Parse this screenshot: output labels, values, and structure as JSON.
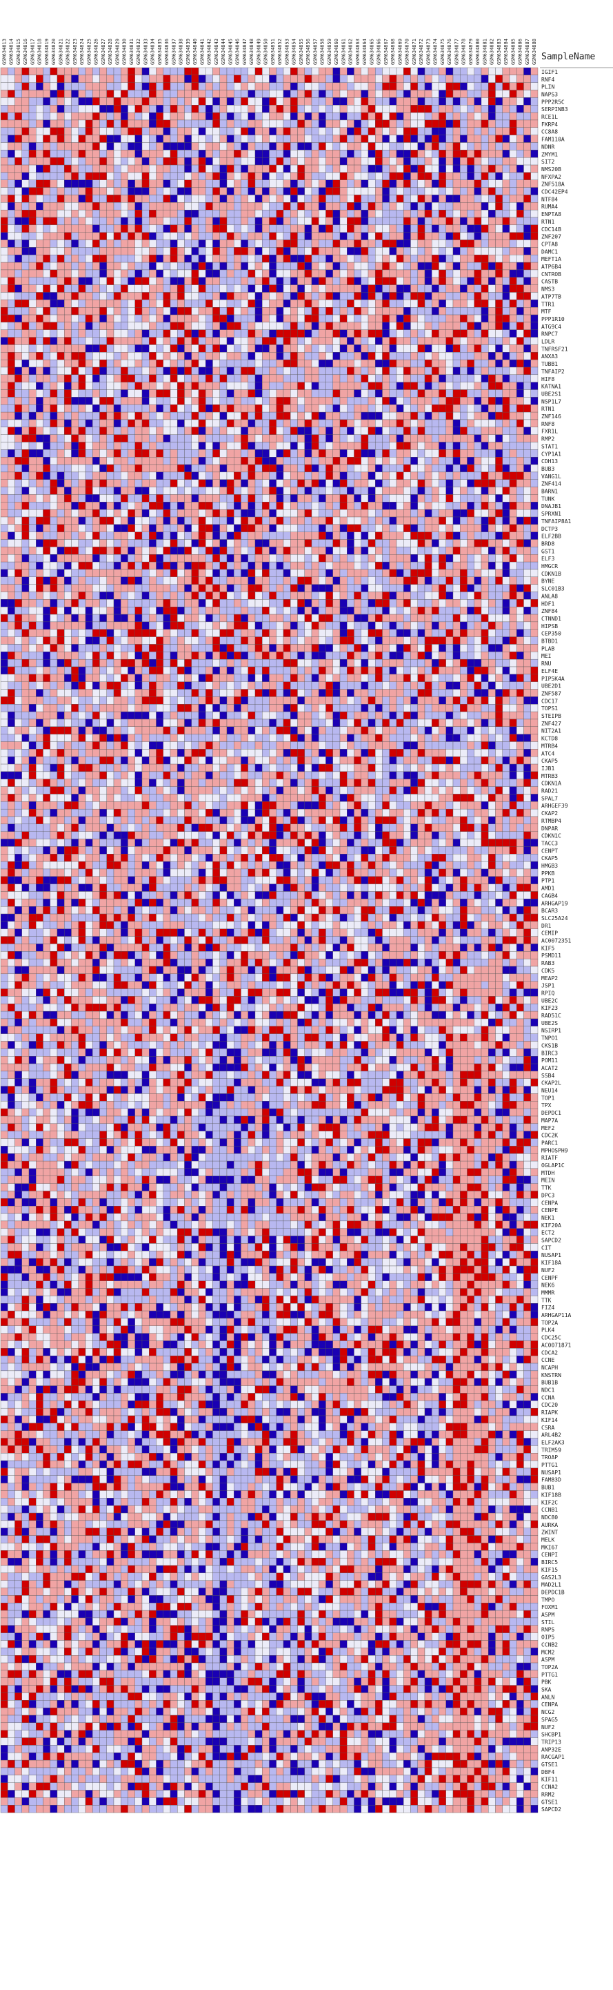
{
  "chart_data": {
    "type": "heatmap",
    "header_label": "SampleName",
    "sample_names": [
      "GSM634813",
      "GSM634814",
      "GSM634815",
      "GSM634816",
      "GSM634817",
      "GSM634818",
      "GSM634819",
      "GSM634820",
      "GSM634821",
      "GSM634822",
      "GSM634823",
      "GSM634824",
      "GSM634825",
      "GSM634826",
      "GSM634827",
      "GSM634828",
      "GSM634829",
      "GSM634830",
      "GSM634831",
      "GSM634832",
      "GSM634833",
      "GSM634834",
      "GSM634835",
      "GSM634836",
      "GSM634837",
      "GSM634838",
      "GSM634839",
      "GSM634840",
      "GSM634841",
      "GSM634842",
      "GSM634843",
      "GSM634844",
      "GSM634845",
      "GSM634846",
      "GSM634847",
      "GSM634848",
      "GSM634849",
      "GSM634850",
      "GSM634851",
      "GSM634852",
      "GSM634853",
      "GSM634854",
      "GSM634855",
      "GSM634856",
      "GSM634857",
      "GSM634858",
      "GSM634859",
      "GSM634860",
      "GSM634861",
      "GSM634862",
      "GSM634863",
      "GSM634864",
      "GSM634865",
      "GSM634866",
      "GSM634867",
      "GSM634868",
      "GSM634869",
      "GSM634870",
      "GSM634871",
      "GSM634872",
      "GSM634873",
      "GSM634874",
      "GSM634875",
      "GSM634876",
      "GSM634877",
      "GSM634878",
      "GSM634879",
      "GSM634880",
      "GSM634881",
      "GSM634882",
      "GSM634883",
      "GSM634884",
      "GSM634885",
      "GSM634886",
      "GSM634887",
      "GSM634888"
    ],
    "genes": [
      "IGIF1",
      "RNF4",
      "PLIN",
      "NAPS3",
      "PPP2R5C",
      "SERPINB3",
      "RCE1L",
      "FKRP4",
      "CC8A8",
      "FAM110A",
      "NDNR",
      "ZMYM1",
      "SIT2",
      "NMS20B",
      "NFXPA2",
      "ZNF518A",
      "CDC42EP4",
      "NTF84",
      "RUMA4",
      "ENPTA8",
      "RTN1",
      "CDC14B",
      "ZNF207",
      "CPTA8",
      "DAMC1",
      "MEFT1A",
      "ATP6B4",
      "CNTROB",
      "CASTB",
      "NMS3",
      "ATP7TB",
      "TTR1",
      "MTF",
      "PPP1R10",
      "ATG9C4",
      "RNPC7",
      "LDLR",
      "TNFRSF21",
      "ANXA3",
      "TUBB1",
      "TNFAIP2",
      "HIF8",
      "KATNA1",
      "UBE2S1",
      "NSP1L7",
      "RTN1",
      "ZNF146",
      "RNF8",
      "FXR1L",
      "RMP2",
      "STAT1",
      "CYP1A1",
      "CDH13",
      "BUB3",
      "VANG1L",
      "ZNF414",
      "BARN1",
      "TUNK",
      "DNAJB1",
      "SPRXN1",
      "TNFAIP8A1",
      "DCTP3",
      "ELF2BB",
      "BRD8",
      "GST1",
      "ELF3",
      "HMGCR",
      "CDKN1B",
      "BYNE",
      "SLC01B3",
      "ANLA8",
      "HDF1",
      "ZNF84",
      "CTNND1",
      "HIPSB",
      "CEP350",
      "BTBD1",
      "PLAB",
      "MEI",
      "RNU",
      "ELF4E",
      "PIP5K4A",
      "UBE2D1",
      "ZNF587",
      "CDC17",
      "TOPS1",
      "STEIPB",
      "ZNF427",
      "NIT2A1",
      "KCTD8",
      "MTRB4",
      "ATC4",
      "CKAP5",
      "IJB1",
      "MTRB3",
      "CDKN1A",
      "RAD21",
      "SPAL7",
      "ARHGEF39",
      "CKAP2",
      "RTMBP4",
      "DNPAR",
      "CDKN1C",
      "TACC3",
      "CENPT",
      "CKAP5",
      "HMGB3",
      "PPKB",
      "PTP1",
      "AMD1",
      "CAGB4",
      "ARHGAP19",
      "BCAR3",
      "SLC25A24",
      "DR1",
      "CEMIP",
      "AC0072351",
      "KIF5",
      "PSMD11",
      "RAB3",
      "CDK5",
      "MEAP2",
      "JSP1",
      "RPIQ",
      "UBE2C",
      "KIF23",
      "RAD51C",
      "UBE2S",
      "NSIRP1",
      "TNPO1",
      "CKS1B",
      "BIRC3",
      "POM11",
      "ACAT2",
      "SSB4",
      "CKAP2L",
      "NEU14",
      "TOP1",
      "TPX",
      "DEPDC1",
      "MAP7A",
      "MEF2",
      "CDC2K",
      "PARC1",
      "MPHOSPH9",
      "RIATF",
      "OGLAP1C",
      "MTDH",
      "MEIN",
      "TTK",
      "DPC3",
      "CENPA",
      "CENPE",
      "NEK1",
      "KIF20A",
      "ECT2",
      "SAPCD2",
      "CIT",
      "NUSAP1",
      "KIF18A",
      "NUF2",
      "CENPF",
      "NEK6",
      "MMMR",
      "TTK",
      "FIZ4",
      "ARHGAP11A",
      "TOP2A",
      "PLK4",
      "CDC25C",
      "AC0071871",
      "CDCA2",
      "CCNE",
      "NCAPH",
      "KNSTRN",
      "BUB1B",
      "NDC1",
      "CCNA",
      "CDC20",
      "RIAPK",
      "KIF14",
      "CSRA",
      "ARL4B2",
      "ELF2AK3",
      "TRIM59",
      "TROAP",
      "PTTG1",
      "NUSAP1",
      "FAM83D",
      "BUB1",
      "KIF18B",
      "KIF2C",
      "CCNB1",
      "NDC80",
      "AURKA",
      "ZWINT",
      "MELK",
      "MKI67",
      "CENPI",
      "BIRC5",
      "KIF15",
      "GAS2L3",
      "MAD2L1",
      "DEPDC1B",
      "TMPO",
      "FOXM1",
      "ASPM",
      "STIL",
      "RNPS",
      "OIP5",
      "CCNB2",
      "MCM2",
      "ASPM",
      "TOP2A",
      "PTTG1",
      "PBK",
      "SKA",
      "ANLN",
      "CENPA",
      "NCG2",
      "SPAG5",
      "NUF2",
      "SHCBP1",
      "TRIP13",
      "ANP32E",
      "RACGAP1",
      "GTSE1",
      "DBF4",
      "KIF11",
      "CCNA2",
      "RRM2",
      "GTSE1",
      "SAPCD2"
    ],
    "color_scale": {
      "low": "#1a00b3",
      "mid_low": "#b8b8f0",
      "mid": "#ececf8",
      "mid_high": "#f0a4a4",
      "high": "#d00000"
    }
  }
}
